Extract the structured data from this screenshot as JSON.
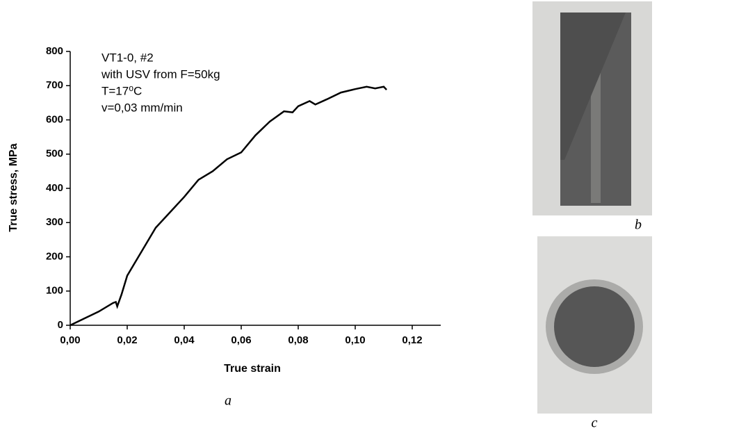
{
  "chart_data": {
    "type": "line",
    "xlabel": "True strain",
    "ylabel": "True stress, MPa",
    "annotations": [
      "VT1-0, #2",
      "with USV from F=50kg",
      "T=17⁰C",
      "v=0,03 mm/min"
    ],
    "x": [
      0,
      0.005,
      0.01,
      0.015,
      0.016,
      0.0165,
      0.018,
      0.02,
      0.025,
      0.03,
      0.035,
      0.04,
      0.045,
      0.05,
      0.055,
      0.06,
      0.065,
      0.07,
      0.075,
      0.078,
      0.08,
      0.084,
      0.086,
      0.09,
      0.095,
      0.1,
      0.104,
      0.107,
      0.11,
      0.111
    ],
    "values": [
      0,
      20,
      40,
      65,
      68,
      55,
      90,
      145,
      215,
      285,
      330,
      375,
      425,
      450,
      485,
      505,
      555,
      595,
      625,
      622,
      640,
      655,
      645,
      660,
      680,
      690,
      697,
      692,
      697,
      688
    ],
    "color": "#000000",
    "xlim": [
      0,
      0.13
    ],
    "xticks": [
      {
        "value": 0,
        "label": "0,00"
      },
      {
        "value": 0.02,
        "label": "0,02"
      },
      {
        "value": 0.04,
        "label": "0,04"
      },
      {
        "value": 0.06,
        "label": "0,06"
      },
      {
        "value": 0.08,
        "label": "0,08"
      },
      {
        "value": 0.1,
        "label": "0,10"
      },
      {
        "value": 0.12,
        "label": "0,12"
      }
    ],
    "ylim": [
      0,
      800
    ],
    "yticks": [
      0,
      100,
      200,
      300,
      400,
      500,
      600,
      700,
      800
    ]
  },
  "captions": [
    "a",
    "b",
    "c"
  ]
}
